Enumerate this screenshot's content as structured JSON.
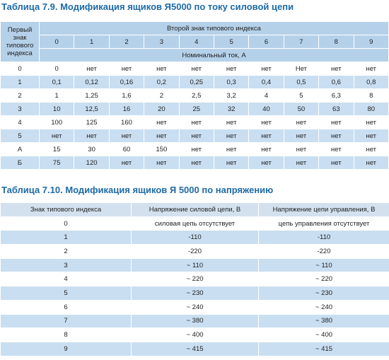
{
  "table1": {
    "title": "Таблица 7.9. Модификация ящиков Я5000 по току силовой цепи",
    "first_header": "Первый знак типового индекса",
    "second_header": "Второй знак типового индекса",
    "columns": [
      "0",
      "1",
      "2",
      "3",
      "4",
      "5",
      "6",
      "7",
      "8",
      "9"
    ],
    "unit_header": "Номинальный ток, А",
    "rows": [
      [
        "0",
        "0",
        "нет",
        "нет",
        "нет",
        "нет",
        "нет",
        "нет",
        "Нет",
        "нет",
        "нет"
      ],
      [
        "1",
        "0,1",
        "0,12",
        "0,16",
        "0,2",
        "0,25",
        "0,3",
        "0,4",
        "0,5",
        "0,6",
        "0,8"
      ],
      [
        "2",
        "1",
        "1,25",
        "1,6",
        "2",
        "2,5",
        "3,2",
        "4",
        "5",
        "6,3",
        "8"
      ],
      [
        "3",
        "10",
        "12,5",
        "16",
        "20",
        "25",
        "32",
        "40",
        "50",
        "63",
        "80"
      ],
      [
        "4",
        "100",
        "125",
        "160",
        "нет",
        "нет",
        "нет",
        "нет",
        "нет",
        "нет",
        "нет"
      ],
      [
        "5",
        "нет",
        "нет",
        "нет",
        "нет",
        "нет",
        "нет",
        "нет",
        "нет",
        "нет",
        "нет"
      ],
      [
        "А",
        "15",
        "30",
        "60",
        "150",
        "нет",
        "нет",
        "нет",
        "нет",
        "нет",
        "нет"
      ],
      [
        "Б",
        "75",
        "120",
        "нет",
        "нет",
        "нет",
        "нет",
        "нет",
        "нет",
        "нет",
        "нет"
      ]
    ]
  },
  "table2": {
    "title": "Таблица 7.10. Модификация ящиков Я 5000 по напряжению",
    "header": [
      "Знак типового индекса",
      "Напряжение силовой цепи, В",
      "Напряжение цепи управления, В"
    ],
    "rows": [
      [
        "0",
        "силовая цепь отсутствует",
        "цепь управления отсутствует"
      ],
      [
        "1",
        "-110",
        "-110"
      ],
      [
        "2",
        "-220",
        "-220"
      ],
      [
        "3",
        "~ 110",
        "~ 110"
      ],
      [
        "4",
        "~ 220",
        "~ 220"
      ],
      [
        "5",
        "~ 230",
        "~ 230"
      ],
      [
        "6",
        "~ 240",
        "~ 240"
      ],
      [
        "7",
        "~ 380",
        "~ 380"
      ],
      [
        "8",
        "~ 400",
        "~ 400"
      ],
      [
        "9",
        "~ 415",
        "~ 415"
      ]
    ]
  }
}
